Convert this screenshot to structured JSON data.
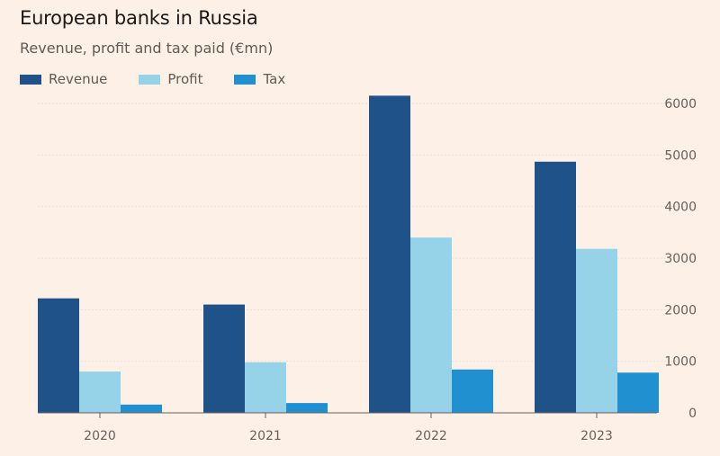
{
  "title": "European banks in Russia",
  "subtitle": "Revenue, profit and tax paid (€mn)",
  "legend": [
    {
      "name": "Revenue",
      "color": "#20528a"
    },
    {
      "name": "Profit",
      "color": "#96d2e8"
    },
    {
      "name": "Tax",
      "color": "#2090d0"
    }
  ],
  "chart_data": {
    "type": "bar",
    "title": "European banks in Russia",
    "subtitle": "Revenue, profit and tax paid (€mn)",
    "xlabel": "",
    "ylabel": "",
    "categories": [
      "2020",
      "2021",
      "2022",
      "2023"
    ],
    "series": [
      {
        "name": "Revenue",
        "color": "#20528a",
        "values": [
          2220,
          2100,
          6150,
          4870
        ]
      },
      {
        "name": "Profit",
        "color": "#96d2e8",
        "values": [
          800,
          980,
          3400,
          3180
        ]
      },
      {
        "name": "Tax",
        "color": "#2090d0",
        "values": [
          160,
          190,
          840,
          780
        ]
      }
    ],
    "ylim": [
      0,
      6000
    ],
    "yticks": [
      "0",
      "1000",
      "2000",
      "3000",
      "4000",
      "5000",
      "6000"
    ],
    "y_axis_position": "right",
    "grid": true,
    "legend_position": "top-left"
  }
}
